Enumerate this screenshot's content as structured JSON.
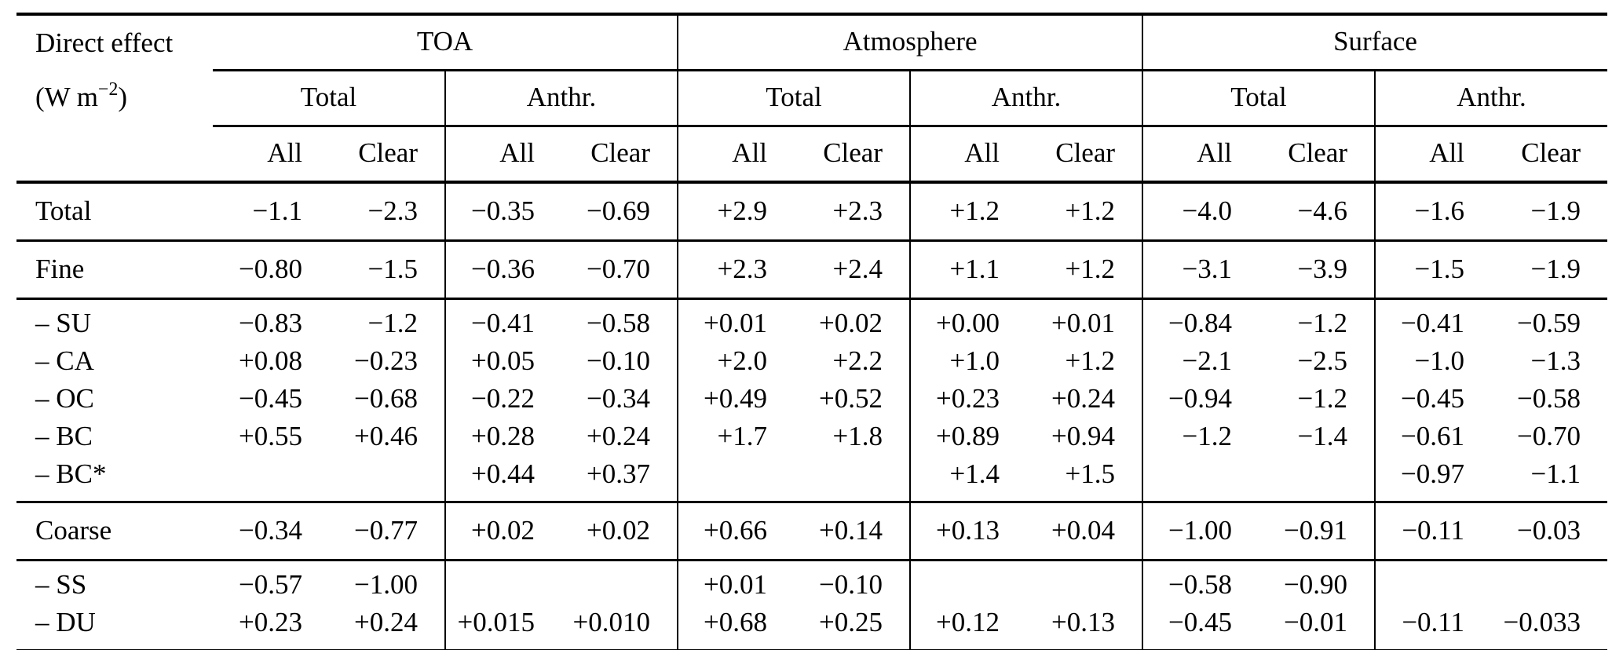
{
  "header": {
    "title": "Direct effect",
    "unit_prefix": "(W m",
    "unit_exponent": "−2",
    "unit_suffix": ")",
    "groups": [
      "TOA",
      "Atmosphere",
      "Surface"
    ],
    "subgroups": [
      "Total",
      "Anthr."
    ],
    "columns": [
      "All",
      "Clear"
    ]
  },
  "body": {
    "blocks": [
      {
        "rows": [
          {
            "label": "Total",
            "values": [
              "−1.1",
              "−2.3",
              "−0.35",
              "−0.69",
              "+2.9",
              "+2.3",
              "+1.2",
              "+1.2",
              "−4.0",
              "−4.6",
              "−1.6",
              "−1.9"
            ]
          }
        ]
      },
      {
        "rows": [
          {
            "label": "Fine",
            "values": [
              "−0.80",
              "−1.5",
              "−0.36",
              "−0.70",
              "+2.3",
              "+2.4",
              "+1.1",
              "+1.2",
              "−3.1",
              "−3.9",
              "−1.5",
              "−1.9"
            ]
          }
        ]
      },
      {
        "rows": [
          {
            "label": "– SU",
            "values": [
              "−0.83",
              "−1.2",
              "−0.41",
              "−0.58",
              "+0.01",
              "+0.02",
              "+0.00",
              "+0.01",
              "−0.84",
              "−1.2",
              "−0.41",
              "−0.59"
            ]
          },
          {
            "label": "– CA",
            "values": [
              "+0.08",
              "−0.23",
              "+0.05",
              "−0.10",
              "+2.0",
              "+2.2",
              "+1.0",
              "+1.2",
              "−2.1",
              "−2.5",
              "−1.0",
              "−1.3"
            ]
          },
          {
            "label": "– OC",
            "values": [
              "−0.45",
              "−0.68",
              "−0.22",
              "−0.34",
              "+0.49",
              "+0.52",
              "+0.23",
              "+0.24",
              "−0.94",
              "−1.2",
              "−0.45",
              "−0.58"
            ]
          },
          {
            "label": "– BC",
            "values": [
              "+0.55",
              "+0.46",
              "+0.28",
              "+0.24",
              "+1.7",
              "+1.8",
              "+0.89",
              "+0.94",
              "−1.2",
              "−1.4",
              "−0.61",
              "−0.70"
            ]
          },
          {
            "label": "– BC*",
            "values": [
              "",
              "",
              "+0.44",
              "+0.37",
              "",
              "",
              "+1.4",
              "+1.5",
              "",
              "",
              "−0.97",
              "−1.1"
            ]
          }
        ]
      },
      {
        "rows": [
          {
            "label": "Coarse",
            "values": [
              "−0.34",
              "−0.77",
              "+0.02",
              "+0.02",
              "+0.66",
              "+0.14",
              "+0.13",
              "+0.04",
              "−1.00",
              "−0.91",
              "−0.11",
              "−0.03"
            ]
          }
        ]
      },
      {
        "rows": [
          {
            "label": "– SS",
            "values": [
              "−0.57",
              "−1.00",
              "",
              "",
              "+0.01",
              "−0.10",
              "",
              "",
              "−0.58",
              "−0.90",
              "",
              ""
            ]
          },
          {
            "label": "– DU",
            "values": [
              "+0.23",
              "+0.24",
              "+0.015",
              "+0.010",
              "+0.68",
              "+0.25",
              "+0.12",
              "+0.13",
              "−0.45",
              "−0.01",
              "−0.11",
              "−0.033"
            ]
          }
        ]
      }
    ]
  }
}
